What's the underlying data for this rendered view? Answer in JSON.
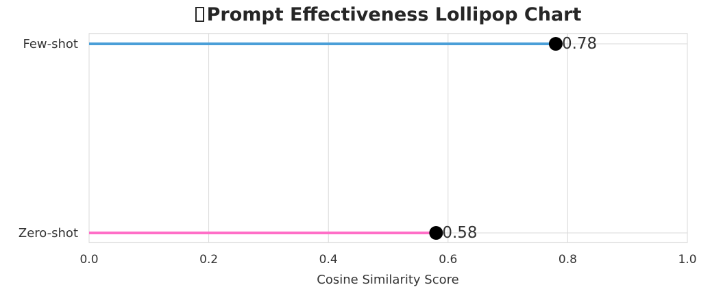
{
  "chart_data": {
    "type": "lollipop",
    "orientation": "horizontal",
    "title": "Prompt Effectiveness Lollipop Chart",
    "title_glyph": "missing-emoji-box-icon",
    "xlabel": "Cosine Similarity Score",
    "ylabel": "",
    "xlim": [
      0.0,
      1.0
    ],
    "xticks": [
      "0.0",
      "0.2",
      "0.4",
      "0.6",
      "0.8",
      "1.0"
    ],
    "grid": true,
    "categories": [
      "Few-shot",
      "Zero-shot"
    ],
    "values": [
      0.78,
      0.58
    ],
    "value_labels": [
      "0.78",
      "0.58"
    ],
    "colors": [
      "#4a9fd8",
      "#ff6ec7"
    ],
    "marker_color": "#000000"
  }
}
